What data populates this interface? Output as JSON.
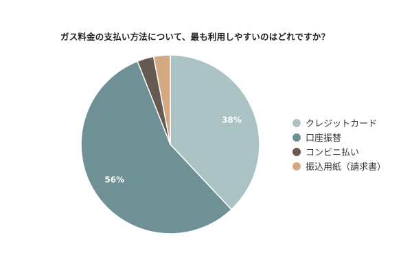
{
  "chart_data": {
    "type": "pie",
    "title": "ガス料金の支払い方法について、最も利用しやすいのはどれですか？",
    "categories": [
      "クレジットカード",
      "口座振替",
      "コンビニ払い",
      "振込用紙（請求書）"
    ],
    "values": [
      38,
      56,
      3,
      3
    ],
    "data_labels": [
      "38%",
      "56%",
      "",
      ""
    ],
    "colors": [
      "#abc3c5",
      "#6f9196",
      "#675a52",
      "#d3a983"
    ],
    "legend_position": "right",
    "start_angle_deg": 0,
    "direction": "clockwise"
  }
}
